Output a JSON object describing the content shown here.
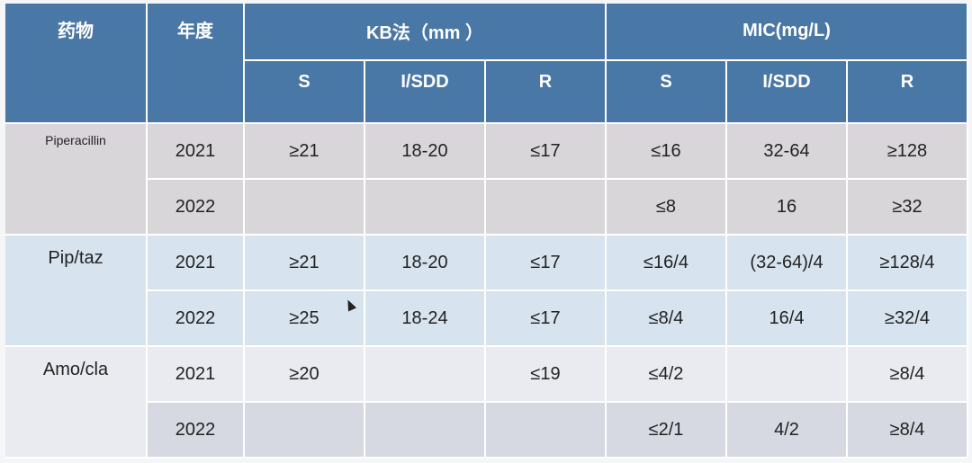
{
  "header": {
    "drug": "药物",
    "year": "年度",
    "kb": "KB法（mm  ）",
    "mic": "MIC(mg/L)",
    "kb_sub": [
      "S",
      "I/SDD",
      "R"
    ],
    "mic_sub": [
      "S",
      "I/SDD",
      "R"
    ]
  },
  "rows": [
    {
      "drug": "Piperacillin",
      "year": "2021",
      "kb_s": "≥21",
      "kb_i": "18-20",
      "kb_r": "≤17",
      "mic_s": "≤16",
      "mic_i": "32-64",
      "mic_r": "≥128"
    },
    {
      "year": "2022",
      "kb_s": "",
      "kb_i": "",
      "kb_r": "",
      "mic_s": "≤8",
      "mic_i": "16",
      "mic_r": "≥32"
    },
    {
      "drug": "Pip/taz",
      "year": "2021",
      "kb_s": "≥21",
      "kb_i": "18-20",
      "kb_r": "≤17",
      "mic_s": "≤16/4",
      "mic_i": "(32-64)/4",
      "mic_r": "≥128/4"
    },
    {
      "year": "2022",
      "kb_s": "≥25",
      "kb_i": "18-24",
      "kb_r": "≤17",
      "mic_s": "≤8/4",
      "mic_i": "16/4",
      "mic_r": "≥32/4"
    },
    {
      "drug": "Amo/cla",
      "year": "2021",
      "kb_s": "≥20",
      "kb_i": "",
      "kb_r": "≤19",
      "mic_s": "≤4/2",
      "mic_i": "",
      "mic_r": "≥8/4"
    },
    {
      "year": "2022",
      "kb_s": "",
      "kb_i": "",
      "kb_r": "",
      "mic_s": "≤2/1",
      "mic_i": "4/2",
      "mic_r": "≥8/4"
    }
  ]
}
